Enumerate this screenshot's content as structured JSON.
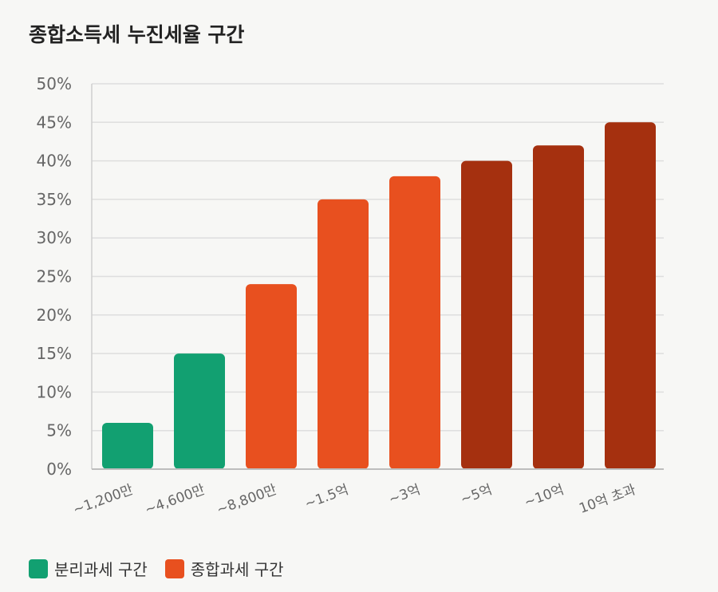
{
  "chart_data": {
    "type": "bar",
    "title": "종합소득세 누진세율 구간",
    "xlabel": "",
    "ylabel": "",
    "ylim": [
      0,
      50
    ],
    "yticks": [
      "0%",
      "5%",
      "10%",
      "15%",
      "20%",
      "25%",
      "30%",
      "35%",
      "40%",
      "45%",
      "50%"
    ],
    "ytick_values": [
      0,
      5,
      10,
      15,
      20,
      25,
      30,
      35,
      40,
      45,
      50
    ],
    "grid": true,
    "categories": [
      "~1,200만",
      "~4,600만",
      "~8,800만",
      "~1.5억",
      "~3억",
      "~5억",
      "~10억",
      "10억 초과"
    ],
    "values": [
      6,
      15,
      24,
      35,
      38,
      40,
      42,
      45
    ],
    "bar_groups": [
      0,
      0,
      1,
      1,
      1,
      2,
      2,
      2
    ],
    "colors": [
      "#12a071",
      "#e8501f",
      "#a5300f"
    ],
    "legend_position": "bottom-left",
    "legend": [
      {
        "label": "분리과세 구간",
        "color": "#12a071"
      },
      {
        "label": "종합과세 구간",
        "color": "#e8501f"
      }
    ]
  }
}
